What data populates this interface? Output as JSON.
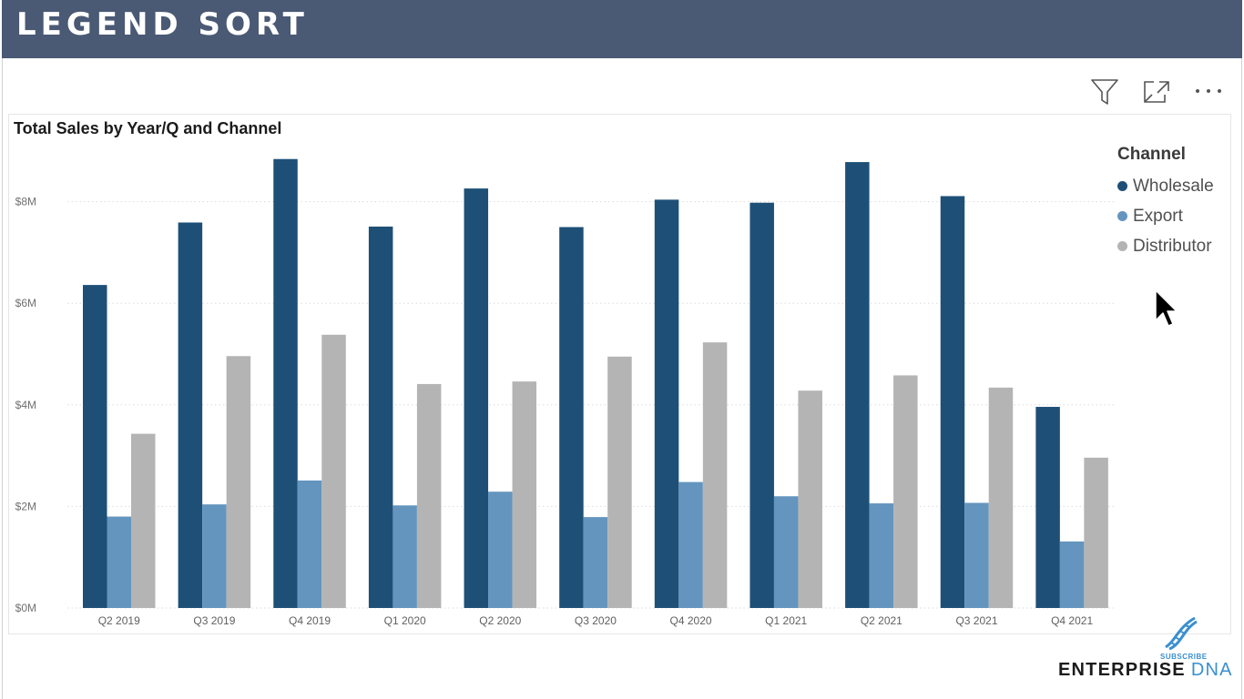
{
  "header": {
    "title": "LEGEND SORT"
  },
  "visual_header": {
    "icons": [
      "filter-icon",
      "focus-mode-icon",
      "more-options-icon"
    ]
  },
  "colors": {
    "header_bg": "#4a5974",
    "wholesale": "#1e5077",
    "export": "#6495be",
    "distributor": "#b4b4b4",
    "brand_blue": "#3a8fd0"
  },
  "chart_data": {
    "type": "bar",
    "title": "Total Sales by Year/Q and Channel",
    "xlabel": "",
    "ylabel": "",
    "categories": [
      "Q2 2019",
      "Q3 2019",
      "Q4 2019",
      "Q1 2020",
      "Q2 2020",
      "Q3 2020",
      "Q4 2020",
      "Q1 2021",
      "Q2 2021",
      "Q3 2021",
      "Q4 2021"
    ],
    "series": [
      {
        "name": "Wholesale",
        "color": "#1e5077",
        "values": [
          6.36,
          7.59,
          8.84,
          7.51,
          8.26,
          7.5,
          8.04,
          7.98,
          8.78,
          8.11,
          3.96
        ]
      },
      {
        "name": "Export",
        "color": "#6495be",
        "values": [
          1.8,
          2.04,
          2.51,
          2.02,
          2.29,
          1.79,
          2.48,
          2.2,
          2.06,
          2.07,
          1.31
        ]
      },
      {
        "name": "Distributor",
        "color": "#b4b4b4",
        "values": [
          3.43,
          4.96,
          5.38,
          4.41,
          4.46,
          4.95,
          5.23,
          4.28,
          4.58,
          4.34,
          2.96
        ]
      }
    ],
    "y_ticks": [
      "$0M",
      "$2M",
      "$4M",
      "$6M",
      "$8M"
    ],
    "y_tick_values": [
      0,
      2,
      4,
      6,
      8
    ],
    "ylim": [
      0,
      9.5
    ],
    "grid": true,
    "legend": {
      "title": "Channel",
      "placement": "right"
    }
  },
  "branding": {
    "subscribe": "SUBSCRIBE",
    "enterprise": "ENTERPRISE",
    "dna": "DNA"
  }
}
